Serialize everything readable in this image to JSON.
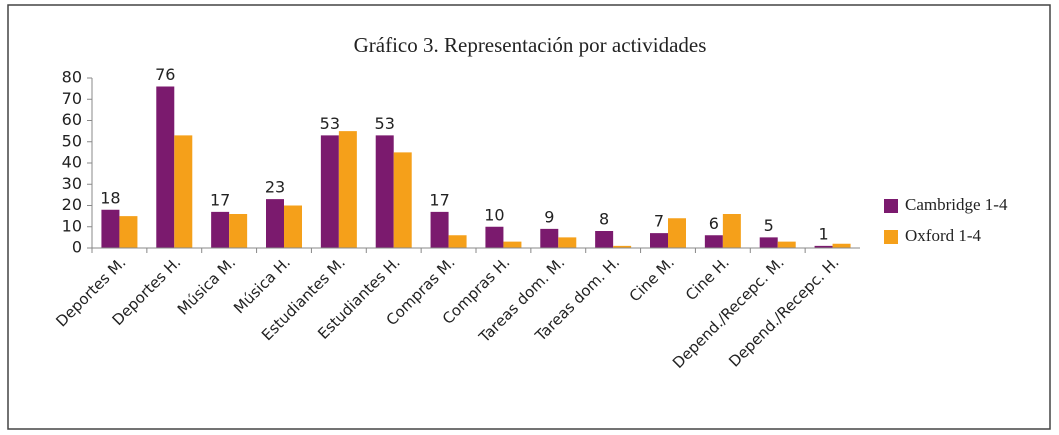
{
  "chart_data": {
    "type": "bar",
    "title": "Gráfico 3. Representación por actividades",
    "categories": [
      "Deportes M.",
      "Deportes H.",
      "Música M.",
      "Música H.",
      "Estudiantes M.",
      "Estudiantes H.",
      "Compras M.",
      "Compras H.",
      "Tareas dom. M.",
      "Tareas dom. H.",
      "Cine M.",
      "Cine H.",
      "Depend./Recepc. M.",
      "Depend./Recepc. H."
    ],
    "series": [
      {
        "name": "Cambridge 1-4",
        "color": "#7b1a6e",
        "values": [
          18,
          76,
          17,
          23,
          53,
          53,
          17,
          10,
          9,
          8,
          7,
          6,
          5,
          1
        ]
      },
      {
        "name": "Oxford 1-4",
        "color": "#f5a01a",
        "values": [
          15,
          53,
          16,
          20,
          55,
          45,
          6,
          3,
          5,
          1,
          14,
          16,
          3,
          2
        ]
      }
    ],
    "ylim": [
      0,
      80
    ],
    "yticks": [
      0,
      10,
      20,
      30,
      40,
      50,
      60,
      70,
      80
    ],
    "grid": false,
    "legend": "right"
  }
}
